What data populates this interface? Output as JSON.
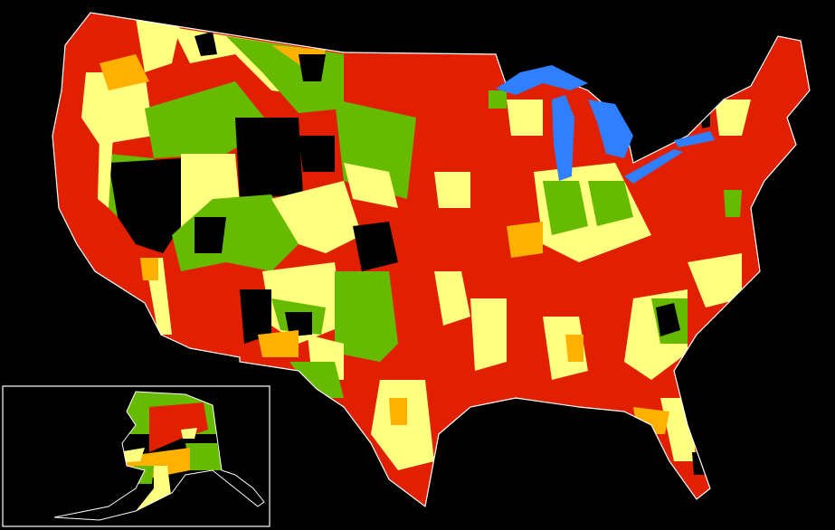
{
  "map": {
    "background": "#000000",
    "border_color": "#ffffff",
    "colors": {
      "red": "#e02000",
      "orange": "#ffb000",
      "yellow": "#ffff80",
      "green": "#66bb00",
      "black": "#000000",
      "water": "#2f7fff"
    },
    "inset": "alaska"
  }
}
